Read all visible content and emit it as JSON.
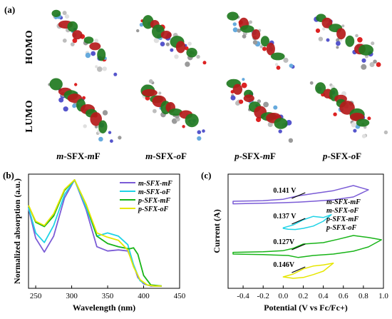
{
  "panels": {
    "a": "(a)",
    "b": "(b)",
    "c": "(c)"
  },
  "rows": {
    "homo": "HOMO",
    "lumo": "LUMO"
  },
  "molecules": [
    {
      "p1": "m",
      "p2": "-SFX-",
      "p3": "m",
      "p4": "F"
    },
    {
      "p1": "m",
      "p2": "-SFX-",
      "p3": "o",
      "p4": "F"
    },
    {
      "p1": "p",
      "p2": "-SFX-",
      "p3": "m",
      "p4": "F"
    },
    {
      "p1": "p",
      "p2": "-SFX-",
      "p3": "o",
      "p4": "F"
    }
  ],
  "colors": {
    "mSFXmF": "#7b5cd6",
    "mSFXoF": "#1fd3e6",
    "pSFXmF": "#18b418",
    "pSFXoF": "#e6e600"
  },
  "chart_data": [
    {
      "type": "line",
      "xlabel": "Wavelength (nm)",
      "ylabel": "Normalized absorption (a.u.)",
      "xlim": [
        240,
        450
      ],
      "xticks": [
        250,
        300,
        350,
        400,
        450
      ],
      "series": [
        {
          "name": "m-SFX-mF",
          "x": [
            240,
            250,
            262,
            275,
            290,
            304,
            320,
            335,
            350,
            365,
            378,
            385,
            392,
            400,
            410,
            425
          ],
          "y": [
            0.73,
            0.45,
            0.32,
            0.47,
            0.83,
            1.0,
            0.72,
            0.37,
            0.33,
            0.34,
            0.33,
            0.22,
            0.08,
            0.02,
            0.0,
            0.0
          ]
        },
        {
          "name": "m-SFX-oF",
          "x": [
            240,
            250,
            262,
            275,
            290,
            304,
            320,
            335,
            350,
            365,
            378,
            386,
            395,
            405,
            415,
            425
          ],
          "y": [
            0.74,
            0.5,
            0.41,
            0.57,
            0.86,
            1.0,
            0.74,
            0.47,
            0.5,
            0.47,
            0.39,
            0.2,
            0.05,
            0.01,
            0.0,
            0.0
          ]
        },
        {
          "name": "p-SFX-mF",
          "x": [
            240,
            250,
            262,
            275,
            290,
            304,
            320,
            335,
            350,
            365,
            380,
            386,
            392,
            400,
            410,
            425
          ],
          "y": [
            0.76,
            0.6,
            0.56,
            0.66,
            0.9,
            1.0,
            0.77,
            0.47,
            0.4,
            0.37,
            0.35,
            0.36,
            0.3,
            0.1,
            0.01,
            0.0
          ]
        },
        {
          "name": "p-SFX-oF",
          "x": [
            240,
            250,
            262,
            275,
            290,
            304,
            320,
            335,
            350,
            365,
            378,
            386,
            395,
            405,
            415,
            425
          ],
          "y": [
            0.76,
            0.61,
            0.57,
            0.68,
            0.91,
            1.0,
            0.77,
            0.5,
            0.46,
            0.43,
            0.34,
            0.18,
            0.06,
            0.01,
            0.0,
            0.0
          ]
        }
      ]
    },
    {
      "type": "line",
      "xlabel": "Potential (V vs Fc/Fc+)",
      "ylabel": "Current (A)",
      "xlim": [
        -0.55,
        1.0
      ],
      "xticks": [
        -0.4,
        -0.2,
        0.0,
        0.2,
        0.4,
        0.6,
        0.8,
        1.0
      ],
      "annotations": [
        {
          "text": "0.141 V",
          "series": "m-SFX-mF"
        },
        {
          "text": "0.137 V",
          "series": "m-SFX-oF"
        },
        {
          "text": "0.127V",
          "series": "p-SFX-mF"
        },
        {
          "text": "0.146V",
          "series": "p-SFX-oF"
        }
      ],
      "series": [
        {
          "name": "m-SFX-mF",
          "offset": 3.0,
          "x": [
            -0.5,
            -0.2,
            0.0,
            0.15,
            0.3,
            0.5,
            0.7,
            0.85,
            0.7,
            0.5,
            0.3,
            0.15,
            0.0,
            -0.2,
            -0.5
          ],
          "y": [
            0.05,
            0.07,
            0.12,
            0.24,
            0.32,
            0.42,
            0.6,
            0.45,
            0.2,
            0.1,
            0.05,
            0.02,
            0.0,
            -0.02,
            -0.04
          ]
        },
        {
          "name": "m-SFX-oF",
          "offset": 2.1,
          "x": [
            0.0,
            0.1,
            0.2,
            0.3,
            0.4,
            0.48,
            0.4,
            0.3,
            0.2,
            0.12,
            0.05,
            0.0
          ],
          "y": [
            0.02,
            0.12,
            0.3,
            0.42,
            0.38,
            0.48,
            0.25,
            0.08,
            0.0,
            -0.04,
            -0.03,
            0.0
          ]
        },
        {
          "name": "p-SFX-mF",
          "offset": 1.2,
          "x": [
            -0.5,
            -0.2,
            0.0,
            0.1,
            0.2,
            0.4,
            0.55,
            0.7,
            0.85,
            0.98,
            0.85,
            0.7,
            0.5,
            0.3,
            0.15,
            0.05,
            -0.2,
            -0.5
          ],
          "y": [
            0.06,
            0.08,
            0.12,
            0.2,
            0.35,
            0.4,
            0.52,
            0.65,
            0.58,
            0.5,
            0.25,
            0.1,
            0.0,
            -0.05,
            -0.12,
            -0.05,
            -0.02,
            0.0
          ]
        },
        {
          "name": "p-SFX-oF",
          "offset": 0.4,
          "x": [
            0.0,
            0.1,
            0.2,
            0.3,
            0.4,
            0.5,
            0.4,
            0.3,
            0.2,
            0.1,
            0.0
          ],
          "y": [
            0.0,
            0.1,
            0.28,
            0.38,
            0.42,
            0.48,
            0.2,
            0.08,
            -0.02,
            -0.05,
            0.0
          ]
        }
      ]
    }
  ]
}
